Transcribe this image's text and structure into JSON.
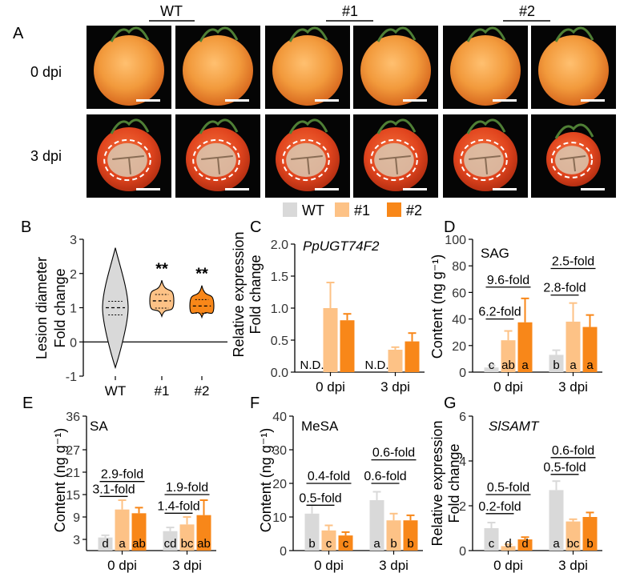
{
  "colors": {
    "WT": "#d9d9d9",
    "#1": "#fdc286",
    "#2": "#f88719"
  },
  "panels": {
    "A": {
      "letter": "A",
      "genotypes": [
        "WT",
        "#1",
        "#2"
      ],
      "rows": [
        "0 dpi",
        "3 dpi"
      ]
    }
  },
  "legend": {
    "items": [
      "WT",
      "#1",
      "#2"
    ]
  },
  "chart_data": [
    {
      "panel": "B",
      "type": "violin",
      "ylabel": [
        "Lesion diameter",
        "Fold change"
      ],
      "categories": [
        "WT",
        "#1",
        "#2"
      ],
      "yticks": [
        "-1",
        "0",
        "1",
        "2",
        "3"
      ],
      "ylim": [
        -1,
        3
      ],
      "medians": [
        1.0,
        1.2,
        1.05
      ],
      "ranges": [
        [
          -0.75,
          2.75
        ],
        [
          0.75,
          1.8
        ],
        [
          0.72,
          1.65
        ]
      ],
      "annotations": [
        "",
        "**",
        "**"
      ]
    },
    {
      "panel": "C",
      "type": "bar",
      "title": "PpUGT74F2",
      "ylabel": [
        "Relative expression",
        "Fold change"
      ],
      "categories": [
        "0 dpi",
        "3 dpi"
      ],
      "yticks": [
        "0.0",
        "0.5",
        "1.0",
        "1.5",
        "2.0"
      ],
      "ylim": [
        0,
        2
      ],
      "series": [
        {
          "name": "WT",
          "values": [
            null,
            null
          ],
          "errors": [
            0,
            0
          ],
          "labels": [
            "N.D.",
            "N.D."
          ]
        },
        {
          "name": "#1",
          "values": [
            1.0,
            0.35
          ],
          "errors": [
            0.4,
            0.04
          ],
          "labels": [
            "",
            ""
          ]
        },
        {
          "name": "#2",
          "values": [
            0.81,
            0.48
          ],
          "errors": [
            0.1,
            0.13
          ],
          "labels": [
            "",
            ""
          ]
        }
      ],
      "brackets": []
    },
    {
      "panel": "D",
      "type": "bar",
      "title": "SAG",
      "ylabel": [
        "Content (ng g⁻¹)"
      ],
      "categories": [
        "0 dpi",
        "3 dpi"
      ],
      "yticks": [
        "0",
        "20",
        "40",
        "60",
        "80",
        "100"
      ],
      "ylim": [
        0,
        100
      ],
      "series": [
        {
          "name": "WT",
          "values": [
            3.5,
            13
          ],
          "errors": [
            1.5,
            3.5
          ],
          "labels": [
            "c",
            "b"
          ]
        },
        {
          "name": "#1",
          "values": [
            24,
            38
          ],
          "errors": [
            7,
            14
          ],
          "labels": [
            "ab",
            "a"
          ]
        },
        {
          "name": "#2",
          "values": [
            37.5,
            34
          ],
          "errors": [
            18,
            9
          ],
          "labels": [
            "a",
            "a"
          ]
        }
      ],
      "brackets": [
        {
          "group": 0,
          "from": 0,
          "to": 1,
          "level": 40,
          "label": "6.2-fold"
        },
        {
          "group": 0,
          "from": 0,
          "to": 2,
          "level": 64,
          "label": "9.6-fold"
        },
        {
          "group": 1,
          "from": 0,
          "to": 1,
          "level": 58,
          "label": "2.8-fold"
        },
        {
          "group": 1,
          "from": 0,
          "to": 2,
          "level": 78,
          "label": "2.5-fold"
        }
      ]
    },
    {
      "panel": "E",
      "type": "bar",
      "title": "SA",
      "ylabel": [
        "Content (ng g⁻¹)"
      ],
      "categories": [
        "0 dpi",
        "3 dpi"
      ],
      "yticks": [
        "3",
        "9",
        "15",
        "21",
        "27",
        "36"
      ],
      "ytick_values": [
        3,
        9,
        15,
        21,
        27,
        36
      ],
      "ylim": [
        0,
        36
      ],
      "series": [
        {
          "name": "WT",
          "values": [
            3.5,
            5.2
          ],
          "errors": [
            0.6,
            1.0
          ],
          "labels": [
            "d",
            "cd"
          ]
        },
        {
          "name": "#1",
          "values": [
            11,
            7
          ],
          "errors": [
            2.5,
            2.0
          ],
          "labels": [
            "a",
            "bc"
          ]
        },
        {
          "name": "#2",
          "values": [
            10,
            9.5
          ],
          "errors": [
            1.5,
            4.0
          ],
          "labels": [
            "ab",
            "ab"
          ]
        }
      ],
      "brackets": [
        {
          "group": 0,
          "from": 0,
          "to": 1,
          "level": 14.5,
          "label": "3.1-fold"
        },
        {
          "group": 0,
          "from": 0,
          "to": 2,
          "level": 18.5,
          "label": "2.9-fold"
        },
        {
          "group": 1,
          "from": 0,
          "to": 1,
          "level": 10,
          "label": "1.4-fold"
        },
        {
          "group": 1,
          "from": 0,
          "to": 2,
          "level": 15,
          "label": "1.9-fold"
        }
      ]
    },
    {
      "panel": "F",
      "type": "bar",
      "title": "MeSA",
      "ylabel": [
        "Content (ng g⁻¹)"
      ],
      "categories": [
        "0 dpi",
        "3 dpi"
      ],
      "yticks": [
        "0",
        "10",
        "20",
        "30",
        "40"
      ],
      "ylim": [
        0,
        40
      ],
      "series": [
        {
          "name": "WT",
          "values": [
            11,
            15
          ],
          "errors": [
            2.5,
            2.5
          ],
          "labels": [
            "b",
            "a"
          ]
        },
        {
          "name": "#1",
          "values": [
            6,
            9
          ],
          "errors": [
            1.5,
            2.0
          ],
          "labels": [
            "c",
            "b"
          ]
        },
        {
          "name": "#2",
          "values": [
            4.5,
            9
          ],
          "errors": [
            1.0,
            1.5
          ],
          "labels": [
            "c",
            "b"
          ]
        }
      ],
      "brackets": [
        {
          "group": 0,
          "from": 0,
          "to": 1,
          "level": 13.5,
          "label": "0.5-fold"
        },
        {
          "group": 0,
          "from": 0,
          "to": 2,
          "level": 20,
          "label": "0.4-fold"
        },
        {
          "group": 1,
          "from": 0,
          "to": 1,
          "level": 20,
          "label": "0.6-fold"
        },
        {
          "group": 1,
          "from": 0,
          "to": 2,
          "level": 27,
          "label": "0.6-fold"
        }
      ]
    },
    {
      "panel": "G",
      "type": "bar",
      "title": "SlSAMT",
      "ylabel": [
        "Relative expression",
        "Fold change"
      ],
      "categories": [
        "0 dpi",
        "3 dpi"
      ],
      "yticks": [
        "0",
        "2",
        "4",
        "6"
      ],
      "ylim": [
        0,
        6
      ],
      "series": [
        {
          "name": "WT",
          "values": [
            1.0,
            2.7
          ],
          "errors": [
            0.25,
            0.4
          ],
          "labels": [
            "c",
            "a"
          ]
        },
        {
          "name": "#1",
          "values": [
            0.2,
            1.3
          ],
          "errors": [
            0.08,
            0.1
          ],
          "labels": [
            "d",
            "bc"
          ]
        },
        {
          "name": "#2",
          "values": [
            0.5,
            1.5
          ],
          "errors": [
            0.1,
            0.2
          ],
          "labels": [
            "d",
            "b"
          ]
        }
      ],
      "brackets": [
        {
          "group": 0,
          "from": 0,
          "to": 1,
          "level": 1.65,
          "label": "0.2-fold"
        },
        {
          "group": 0,
          "from": 0,
          "to": 2,
          "level": 2.5,
          "label": "0.5-fold"
        },
        {
          "group": 1,
          "from": 0,
          "to": 1,
          "level": 3.4,
          "label": "0.5-fold"
        },
        {
          "group": 1,
          "from": 0,
          "to": 2,
          "level": 4.15,
          "label": "0.6-fold"
        }
      ]
    }
  ]
}
